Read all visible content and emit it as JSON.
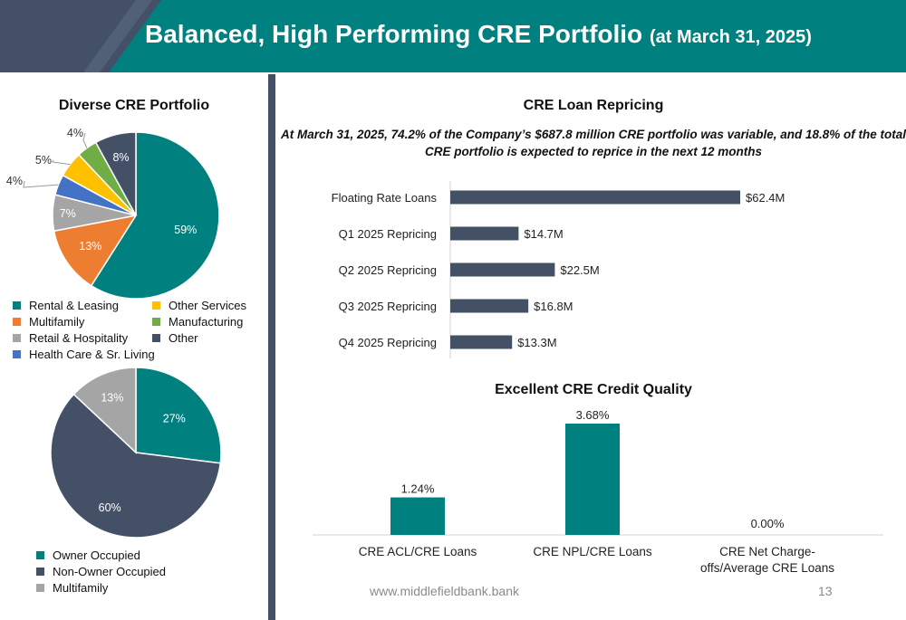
{
  "header": {
    "title": "Balanced, High Performing CRE Portfolio",
    "subtitle": "(at March 31, 2025)"
  },
  "footer": {
    "url": "www.middlefieldbank.bank",
    "page": "13"
  },
  "colors": {
    "teal": "#00807E",
    "orange": "#ED7D31",
    "gray": "#A5A5A5",
    "blue": "#4472C4",
    "gold": "#FFC000",
    "green": "#70AD47",
    "navy": "#435066"
  },
  "chart_data": [
    {
      "type": "pie",
      "title": "Diverse CRE Portfolio",
      "slices": [
        {
          "name": "Rental & Leasing",
          "value": 59,
          "label": "59%",
          "color": "#00807E"
        },
        {
          "name": "Multifamily",
          "value": 13,
          "label": "13%",
          "color": "#ED7D31"
        },
        {
          "name": "Retail & Hospitality",
          "value": 7,
          "label": "7%",
          "color": "#A5A5A5"
        },
        {
          "name": "Health Care & Sr. Living",
          "value": 4,
          "label": "4%",
          "color": "#4472C4"
        },
        {
          "name": "Other Services",
          "value": 5,
          "label": "5%",
          "color": "#FFC000"
        },
        {
          "name": "Manufacturing",
          "value": 4,
          "label": "4%",
          "color": "#70AD47"
        },
        {
          "name": "Other",
          "value": 8,
          "label": "8%",
          "color": "#435066"
        }
      ]
    },
    {
      "type": "pie",
      "title": "",
      "slices": [
        {
          "name": "Owner Occupied",
          "value": 27,
          "label": "27%",
          "color": "#00807E"
        },
        {
          "name": "Non-Owner Occupied",
          "value": 60,
          "label": "60%",
          "color": "#435066"
        },
        {
          "name": "Multifamily",
          "value": 13,
          "label": "13%",
          "color": "#A5A5A5"
        }
      ]
    },
    {
      "type": "bar",
      "orientation": "horizontal",
      "title": "CRE Loan Repricing",
      "subtitle": "At March 31, 2025, 74.2% of the Company’s $687.8 million CRE portfolio was variable, and 18.8% of the total CRE portfolio is expected to reprice in the next 12 months",
      "categories": [
        "Floating Rate Loans",
        "Q1 2025 Repricing",
        "Q2 2025 Repricing",
        "Q3 2025 Repricing",
        "Q4 2025 Repricing"
      ],
      "values": [
        62.4,
        14.7,
        22.5,
        16.8,
        13.3
      ],
      "labels": [
        "$62.4M",
        "$14.7M",
        "$22.5M",
        "$16.8M",
        "$13.3M"
      ],
      "unit": "$M",
      "xlim": [
        0,
        62.4
      ],
      "color": "#435066"
    },
    {
      "type": "bar",
      "title": "Excellent CRE Credit Quality",
      "categories": [
        "CRE ACL/CRE Loans",
        "CRE NPL/CRE Loans",
        "CRE Net Charge-offs/Average CRE Loans"
      ],
      "values": [
        1.24,
        3.68,
        0.0
      ],
      "labels": [
        "1.24%",
        "3.68%",
        "0.00%"
      ],
      "unit": "%",
      "ylim": [
        0,
        3.68
      ],
      "color": "#00807E"
    }
  ]
}
